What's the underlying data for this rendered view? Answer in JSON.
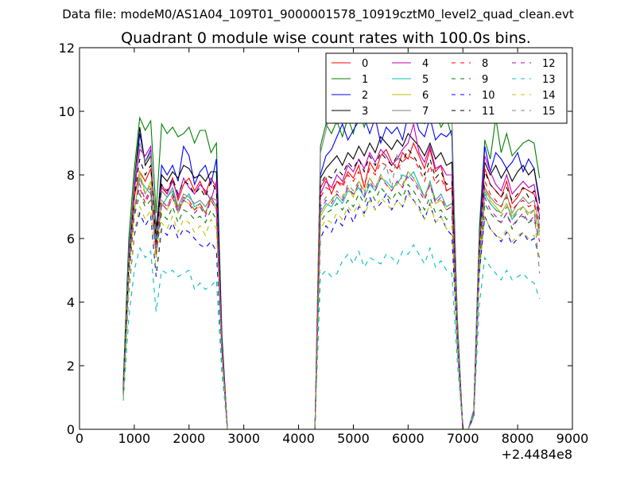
{
  "chart_data": {
    "type": "line",
    "suptitle": "Data file: modeM0/AS1A04_109T01_9000001578_10919cztM0_level2_quad_clean.evt",
    "title": "Quadrant 0 module wise count rates with 100.0s bins.",
    "xlabel": "",
    "ylabel": "",
    "x_offset_label": "+2.4484e8",
    "xlim": [
      0,
      9000
    ],
    "ylim": [
      0,
      12
    ],
    "xticks": [
      0,
      1000,
      2000,
      3000,
      4000,
      5000,
      6000,
      7000,
      8000,
      9000
    ],
    "xtick_labels": [
      "0",
      "1000",
      "2000",
      "3000",
      "4000",
      "5000",
      "6000",
      "7000",
      "8000",
      "9000"
    ],
    "yticks": [
      0,
      2,
      4,
      6,
      8,
      10,
      12
    ],
    "ytick_labels": [
      "0",
      "2",
      "4",
      "6",
      "8",
      "10",
      "12"
    ],
    "legend_position": "top-right",
    "legend_columns": 4,
    "series": [
      {
        "name": "0",
        "color": "#ff0000",
        "dash": "solid"
      },
      {
        "name": "1",
        "color": "#008000",
        "dash": "solid"
      },
      {
        "name": "2",
        "color": "#0000ff",
        "dash": "solid"
      },
      {
        "name": "3",
        "color": "#000000",
        "dash": "solid"
      },
      {
        "name": "4",
        "color": "#bf00bf",
        "dash": "solid"
      },
      {
        "name": "5",
        "color": "#00bfbf",
        "dash": "solid"
      },
      {
        "name": "6",
        "color": "#bfbf00",
        "dash": "solid"
      },
      {
        "name": "7",
        "color": "#808080",
        "dash": "solid"
      },
      {
        "name": "8",
        "color": "#ff0000",
        "dash": "dashed"
      },
      {
        "name": "9",
        "color": "#008000",
        "dash": "dashed"
      },
      {
        "name": "10",
        "color": "#0000ff",
        "dash": "dashed"
      },
      {
        "name": "11",
        "color": "#000000",
        "dash": "dashed"
      },
      {
        "name": "12",
        "color": "#bf00bf",
        "dash": "dashed"
      },
      {
        "name": "13",
        "color": "#00bfbf",
        "dash": "dashed"
      },
      {
        "name": "14",
        "color": "#bfbf00",
        "dash": "dashed"
      },
      {
        "name": "15",
        "color": "#808080",
        "dash": "dashed"
      }
    ],
    "x": [
      800,
      900,
      1000,
      1100,
      1200,
      1300,
      1400,
      1500,
      1600,
      1700,
      1800,
      1900,
      2000,
      2100,
      2200,
      2300,
      2400,
      2500,
      2600,
      2700,
      2800,
      2900,
      3000,
      3100,
      3200,
      3300,
      3400,
      3500,
      3600,
      3700,
      3800,
      3900,
      4000,
      4100,
      4200,
      4300,
      4400,
      4500,
      4600,
      4700,
      4800,
      4900,
      5000,
      5100,
      5200,
      5300,
      5400,
      5500,
      5600,
      5700,
      5800,
      5900,
      6000,
      6100,
      6200,
      6300,
      6400,
      6500,
      6600,
      6700,
      6800,
      6900,
      7000,
      7100,
      7200,
      7300,
      7400,
      7500,
      7600,
      7700,
      7800,
      7900,
      8000,
      8100,
      8200,
      8300,
      8400
    ],
    "series_values": {
      "0": [
        1.2,
        5.4,
        7.3,
        8.1,
        7.8,
        8.2,
        6.3,
        7.6,
        7.4,
        7.9,
        7.2,
        7.7,
        7.9,
        7.5,
        7.8,
        7.4,
        7.9,
        7.6,
        2.8,
        0,
        0,
        0,
        0,
        0,
        0,
        0,
        0,
        0,
        0,
        0,
        0,
        0,
        0,
        0,
        0,
        0,
        7.6,
        7.9,
        7.4,
        7.8,
        7.7,
        8.1,
        7.9,
        8.3,
        7.6,
        8.4,
        8.1,
        8.6,
        8.8,
        8.4,
        8.2,
        8.7,
        8.5,
        9.0,
        8.6,
        8.2,
        8.8,
        8.1,
        8.3,
        7.5,
        7.6,
        3.1,
        0,
        0,
        0.5,
        5.8,
        8.2,
        7.7,
        7.5,
        7.3,
        7.8,
        7.1,
        7.3,
        7.6,
        7.5,
        7.4,
        6.9
      ],
      "1": [
        1.5,
        6.0,
        8.2,
        9.8,
        9.4,
        9.7,
        6.8,
        9.6,
        9.3,
        9.5,
        9.2,
        9.3,
        9.5,
        9.0,
        9.4,
        9.4,
        8.7,
        9.0,
        3.0,
        0,
        0,
        0,
        0,
        0,
        0,
        0,
        0,
        0,
        0,
        0,
        0,
        0,
        0,
        0,
        0,
        0,
        8.9,
        9.6,
        9.3,
        9.7,
        9.2,
        9.8,
        9.3,
        10.0,
        9.5,
        10.1,
        9.8,
        10.5,
        10.2,
        9.9,
        10.3,
        10.1,
        10.7,
        10.4,
        10.2,
        9.6,
        10.4,
        10.0,
        9.5,
        9.8,
        9.2,
        3.5,
        0,
        0,
        0.6,
        6.3,
        9.1,
        8.5,
        9.8,
        8.7,
        9.3,
        8.6,
        8.8,
        9.0,
        9.1,
        9.0,
        7.9
      ],
      "2": [
        1.3,
        5.7,
        7.6,
        9.3,
        8.4,
        8.8,
        6.0,
        8.3,
        8.0,
        8.3,
        7.8,
        8.9,
        8.6,
        7.7,
        8.1,
        8.3,
        7.7,
        8.5,
        2.9,
        0,
        0,
        0,
        0,
        0,
        0,
        0,
        0,
        0,
        0,
        0,
        0,
        0,
        0,
        0,
        0,
        0,
        8.0,
        8.6,
        8.8,
        9.2,
        9.6,
        9.1,
        9.4,
        9.7,
        9.8,
        9.3,
        9.8,
        9.0,
        9.5,
        9.3,
        9.5,
        9.1,
        9.9,
        10.0,
        9.4,
        9.2,
        9.8,
        9.1,
        9.3,
        9.2,
        9.4,
        3.2,
        0,
        0,
        0.6,
        6.0,
        8.9,
        8.1,
        8.7,
        8.5,
        8.2,
        8.4,
        8.7,
        8.1,
        8.5,
        8.2,
        7.2
      ],
      "3": [
        1.3,
        5.5,
        7.8,
        9.5,
        8.3,
        8.6,
        6.3,
        8.0,
        7.8,
        8.1,
        7.9,
        8.3,
        8.2,
        7.9,
        8.0,
        7.8,
        8.1,
        8.1,
        2.8,
        0,
        0,
        0,
        0,
        0,
        0,
        0,
        0,
        0,
        0,
        0,
        0,
        0,
        0,
        0,
        0,
        0,
        7.9,
        8.2,
        8.4,
        8.6,
        8.3,
        8.7,
        8.5,
        8.9,
        8.6,
        9.0,
        8.7,
        9.2,
        9.0,
        8.8,
        9.1,
        8.9,
        9.3,
        9.1,
        8.9,
        8.6,
        9.0,
        8.5,
        8.7,
        8.3,
        8.4,
        3.1,
        0,
        0,
        0.6,
        5.9,
        8.4,
        8.0,
        8.3,
        7.9,
        8.2,
        7.8,
        8.1,
        8.3,
        8.0,
        8.2,
        7.1
      ],
      "4": [
        1.2,
        5.3,
        7.5,
        8.8,
        8.6,
        8.9,
        5.8,
        7.7,
        7.4,
        7.8,
        7.3,
        7.9,
        7.6,
        7.4,
        7.7,
        7.5,
        7.2,
        7.8,
        2.7,
        0,
        0,
        0,
        0,
        0,
        0,
        0,
        0,
        0,
        0,
        0,
        0,
        0,
        0,
        0,
        0,
        0,
        7.4,
        7.8,
        7.6,
        8.0,
        7.8,
        8.3,
        8.1,
        8.5,
        8.2,
        8.7,
        8.4,
        8.8,
        8.6,
        8.3,
        8.5,
        8.8,
        9.0,
        9.6,
        8.7,
        8.4,
        8.9,
        8.2,
        8.3,
        8.0,
        8.0,
        3.0,
        0,
        0,
        0.5,
        5.7,
        8.6,
        8.1,
        7.7,
        7.5,
        8.0,
        7.4,
        7.6,
        7.8,
        7.6,
        7.7,
        6.7
      ],
      "5": [
        1.1,
        5.0,
        6.9,
        7.9,
        7.6,
        7.4,
        5.9,
        7.0,
        7.3,
        7.5,
        6.9,
        7.2,
        7.4,
        7.0,
        7.1,
        6.8,
        7.3,
        7.0,
        2.5,
        0,
        0,
        0,
        0,
        0,
        0,
        0,
        0,
        0,
        0,
        0,
        0,
        0,
        0,
        0,
        0,
        0,
        6.8,
        7.1,
        7.0,
        7.3,
        7.1,
        7.5,
        7.4,
        7.6,
        7.3,
        7.7,
        7.5,
        7.9,
        7.8,
        7.6,
        7.7,
        8.0,
        7.9,
        8.1,
        7.7,
        7.3,
        7.8,
        7.2,
        7.4,
        7.0,
        7.1,
        2.9,
        0,
        0,
        0.5,
        5.4,
        7.4,
        7.1,
        6.9,
        6.8,
        7.1,
        6.6,
        6.9,
        7.0,
        6.8,
        6.9,
        6.2
      ],
      "6": [
        1.1,
        5.0,
        6.8,
        8.1,
        7.4,
        7.8,
        5.4,
        7.1,
        6.9,
        7.3,
        6.8,
        7.2,
        7.1,
        6.9,
        7.0,
        6.8,
        7.2,
        6.9,
        2.5,
        0,
        0,
        0,
        0,
        0,
        0,
        0,
        0,
        0,
        0,
        0,
        0,
        0,
        0,
        0,
        0,
        0,
        6.7,
        7.0,
        7.2,
        7.4,
        7.2,
        7.6,
        7.3,
        7.8,
        7.5,
        7.9,
        7.6,
        8.0,
        7.7,
        7.5,
        7.8,
        7.6,
        8.1,
        7.9,
        7.6,
        7.3,
        7.7,
        7.1,
        7.2,
        6.9,
        7.0,
        2.8,
        0,
        0,
        0.5,
        5.3,
        7.6,
        7.2,
        7.0,
        6.8,
        7.1,
        6.7,
        6.9,
        7.0,
        6.8,
        6.9,
        6.1
      ],
      "7": [
        1.2,
        5.6,
        7.8,
        9.0,
        8.4,
        8.7,
        6.1,
        7.5,
        7.3,
        7.6,
        7.0,
        7.4,
        7.3,
        7.1,
        7.2,
        7.0,
        7.3,
        7.2,
        2.6,
        0,
        0,
        0,
        0,
        0,
        0,
        0,
        0,
        0,
        0,
        0,
        0,
        0,
        0,
        0,
        0,
        0,
        8.7,
        9.4,
        10.3,
        9.6,
        9.8,
        10.2,
        10.1,
        9.7,
        10.6,
        10.0,
        10.5,
        10.2,
        10.7,
        10.1,
        10.9,
        10.4,
        11.3,
        10.8,
        10.2,
        9.9,
        10.4,
        10.2,
        9.9,
        10.0,
        9.8,
        3.3,
        0,
        0,
        0.6,
        6.1,
        7.6,
        7.3,
        7.1,
        7.0,
        7.4,
        6.8,
        7.1,
        7.3,
        7.1,
        7.2,
        6.4
      ],
      "8": [
        1.1,
        4.9,
        7.0,
        7.6,
        7.1,
        7.5,
        5.6,
        7.2,
        7.0,
        7.4,
        6.9,
        7.3,
        7.2,
        6.9,
        7.1,
        6.8,
        7.3,
        7.0,
        2.5,
        0,
        0,
        0,
        0,
        0,
        0,
        0,
        0,
        0,
        0,
        0,
        0,
        0,
        0,
        0,
        0,
        0,
        7.3,
        7.6,
        7.5,
        7.8,
        7.6,
        8.0,
        7.8,
        8.1,
        7.7,
        8.2,
        8.0,
        8.4,
        8.3,
        8.1,
        8.2,
        8.4,
        8.6,
        8.5,
        8.2,
        7.8,
        8.3,
        7.7,
        7.9,
        7.5,
        7.6,
        2.9,
        0,
        0,
        0.5,
        5.5,
        7.8,
        7.4,
        7.2,
        7.0,
        7.3,
        6.9,
        7.1,
        7.2,
        7.0,
        7.1,
        6.3
      ],
      "9": [
        1.1,
        4.7,
        6.7,
        7.4,
        7.0,
        7.2,
        5.5,
        6.8,
        6.6,
        7.0,
        6.5,
        6.9,
        6.8,
        6.6,
        6.7,
        6.5,
        6.9,
        6.6,
        2.4,
        0,
        0,
        0,
        0,
        0,
        0,
        0,
        0,
        0,
        0,
        0,
        0,
        0,
        0,
        0,
        0,
        0,
        6.5,
        6.8,
        6.9,
        7.1,
        6.9,
        7.2,
        7.0,
        7.4,
        7.1,
        7.5,
        7.2,
        7.6,
        7.4,
        7.2,
        7.5,
        7.3,
        7.7,
        7.5,
        7.2,
        6.9,
        7.3,
        6.8,
        6.9,
        6.6,
        6.7,
        2.7,
        0,
        0,
        0.5,
        5.1,
        7.1,
        6.8,
        6.6,
        6.5,
        6.8,
        6.3,
        6.6,
        6.7,
        6.5,
        6.6,
        5.9
      ],
      "10": [
        1.0,
        4.3,
        6.1,
        6.8,
        6.4,
        6.7,
        4.8,
        6.3,
        6.1,
        6.5,
        6.0,
        6.3,
        6.2,
        6.0,
        5.8,
        5.7,
        5.9,
        5.6,
        2.2,
        0,
        0,
        0,
        0,
        0,
        0,
        0,
        0,
        0,
        0,
        0,
        0,
        0,
        0,
        0,
        0,
        0,
        6.0,
        6.4,
        6.2,
        6.6,
        6.4,
        6.9,
        6.5,
        7.0,
        6.8,
        7.3,
        6.9,
        7.1,
        7.4,
        6.9,
        7.2,
        7.0,
        7.5,
        7.2,
        7.0,
        6.6,
        7.1,
        6.5,
        6.7,
        6.3,
        6.1,
        2.6,
        0,
        0,
        0.4,
        4.9,
        6.7,
        6.3,
        6.1,
        5.9,
        6.2,
        5.8,
        6.0,
        6.2,
        5.9,
        6.0,
        5.4
      ],
      "11": [
        1.2,
        5.2,
        7.3,
        8.5,
        8.0,
        8.3,
        5.9,
        7.7,
        7.5,
        7.9,
        7.4,
        7.8,
        7.7,
        7.4,
        7.6,
        7.3,
        7.8,
        7.5,
        2.7,
        0,
        0,
        0,
        0,
        0,
        0,
        0,
        0,
        0,
        0,
        0,
        0,
        0,
        0,
        0,
        0,
        0,
        7.7,
        8.0,
        7.9,
        8.2,
        8.0,
        8.4,
        8.2,
        8.5,
        8.1,
        8.6,
        8.3,
        8.7,
        8.5,
        8.3,
        8.6,
        8.4,
        8.8,
        8.6,
        8.3,
        8.0,
        8.5,
        7.9,
        8.1,
        7.7,
        7.8,
        3.0,
        0,
        0,
        0.5,
        5.7,
        8.1,
        7.7,
        7.5,
        7.3,
        7.6,
        7.2,
        7.4,
        7.6,
        7.3,
        7.5,
        6.6
      ],
      "12": [
        1.1,
        4.8,
        6.8,
        7.7,
        7.2,
        7.6,
        5.5,
        7.1,
        6.9,
        7.3,
        6.8,
        7.2,
        7.1,
        6.8,
        7.0,
        6.7,
        7.2,
        6.9,
        2.5,
        0,
        0,
        0,
        0,
        0,
        0,
        0,
        0,
        0,
        0,
        0,
        0,
        0,
        0,
        0,
        0,
        0,
        6.9,
        7.2,
        7.1,
        7.4,
        7.2,
        7.6,
        7.4,
        7.7,
        7.3,
        7.8,
        7.5,
        7.9,
        7.7,
        7.5,
        7.8,
        7.6,
        8.0,
        7.8,
        7.5,
        7.2,
        7.7,
        7.1,
        7.3,
        6.9,
        7.0,
        2.8,
        0,
        0,
        0.5,
        5.3,
        7.3,
        6.9,
        6.7,
        6.5,
        6.8,
        6.4,
        6.6,
        6.8,
        6.5,
        6.7,
        5.9
      ],
      "13": [
        0.9,
        3.5,
        5.0,
        5.7,
        5.4,
        5.6,
        3.7,
        5.0,
        4.9,
        5.0,
        4.8,
        4.9,
        5.0,
        4.4,
        4.6,
        4.4,
        4.5,
        4.7,
        1.8,
        0,
        0,
        0,
        0,
        0,
        0,
        0,
        0,
        0,
        0,
        0,
        0,
        0,
        0,
        0,
        0,
        0,
        4.8,
        5.0,
        4.8,
        4.9,
        5.3,
        5.5,
        5.2,
        5.6,
        5.1,
        5.4,
        5.3,
        5.2,
        5.5,
        5.4,
        5.2,
        5.6,
        5.5,
        5.8,
        5.5,
        5.2,
        5.7,
        5.1,
        5.3,
        5.0,
        4.9,
        2.1,
        0,
        0,
        0.4,
        3.9,
        5.4,
        5.1,
        4.9,
        4.7,
        5.0,
        4.7,
        4.8,
        4.9,
        4.7,
        4.6,
        4.1
      ],
      "14": [
        1.0,
        4.4,
        6.2,
        7.0,
        6.6,
        6.9,
        5.0,
        6.5,
        6.3,
        6.7,
        6.2,
        6.6,
        6.5,
        6.2,
        6.4,
        6.1,
        6.6,
        6.3,
        2.3,
        0,
        0,
        0,
        0,
        0,
        0,
        0,
        0,
        0,
        0,
        0,
        0,
        0,
        0,
        0,
        0,
        0,
        6.3,
        6.6,
        6.5,
        6.8,
        6.6,
        7.0,
        6.8,
        7.1,
        6.7,
        7.2,
        6.9,
        7.3,
        7.1,
        6.9,
        7.2,
        7.0,
        7.4,
        7.2,
        6.9,
        6.6,
        7.1,
        6.5,
        6.7,
        6.3,
        6.4,
        2.6,
        0,
        0,
        0.5,
        4.9,
        6.7,
        6.3,
        6.1,
        6.0,
        6.3,
        5.9,
        6.1,
        6.2,
        6.0,
        6.1,
        5.4
      ],
      "15": [
        1.1,
        4.9,
        6.9,
        7.9,
        7.4,
        7.7,
        5.6,
        7.2,
        7.0,
        7.4,
        6.9,
        7.3,
        7.2,
        6.9,
        7.1,
        6.8,
        7.3,
        7.0,
        2.6,
        0,
        0,
        0,
        0,
        0,
        0,
        0,
        0,
        0,
        0,
        0,
        0,
        0,
        0,
        0,
        0,
        0,
        7.0,
        7.3,
        7.2,
        7.5,
        7.3,
        7.7,
        7.5,
        7.8,
        7.4,
        7.9,
        7.6,
        8.0,
        8.3,
        7.6,
        8.7,
        7.7,
        8.1,
        7.9,
        7.6,
        7.3,
        7.8,
        7.2,
        7.4,
        7.0,
        7.1,
        2.8,
        0,
        0,
        0.5,
        5.4,
        7.5,
        7.1,
        6.9,
        6.7,
        7.0,
        6.6,
        6.8,
        7.0,
        6.7,
        6.9,
        4.9
      ]
    }
  }
}
